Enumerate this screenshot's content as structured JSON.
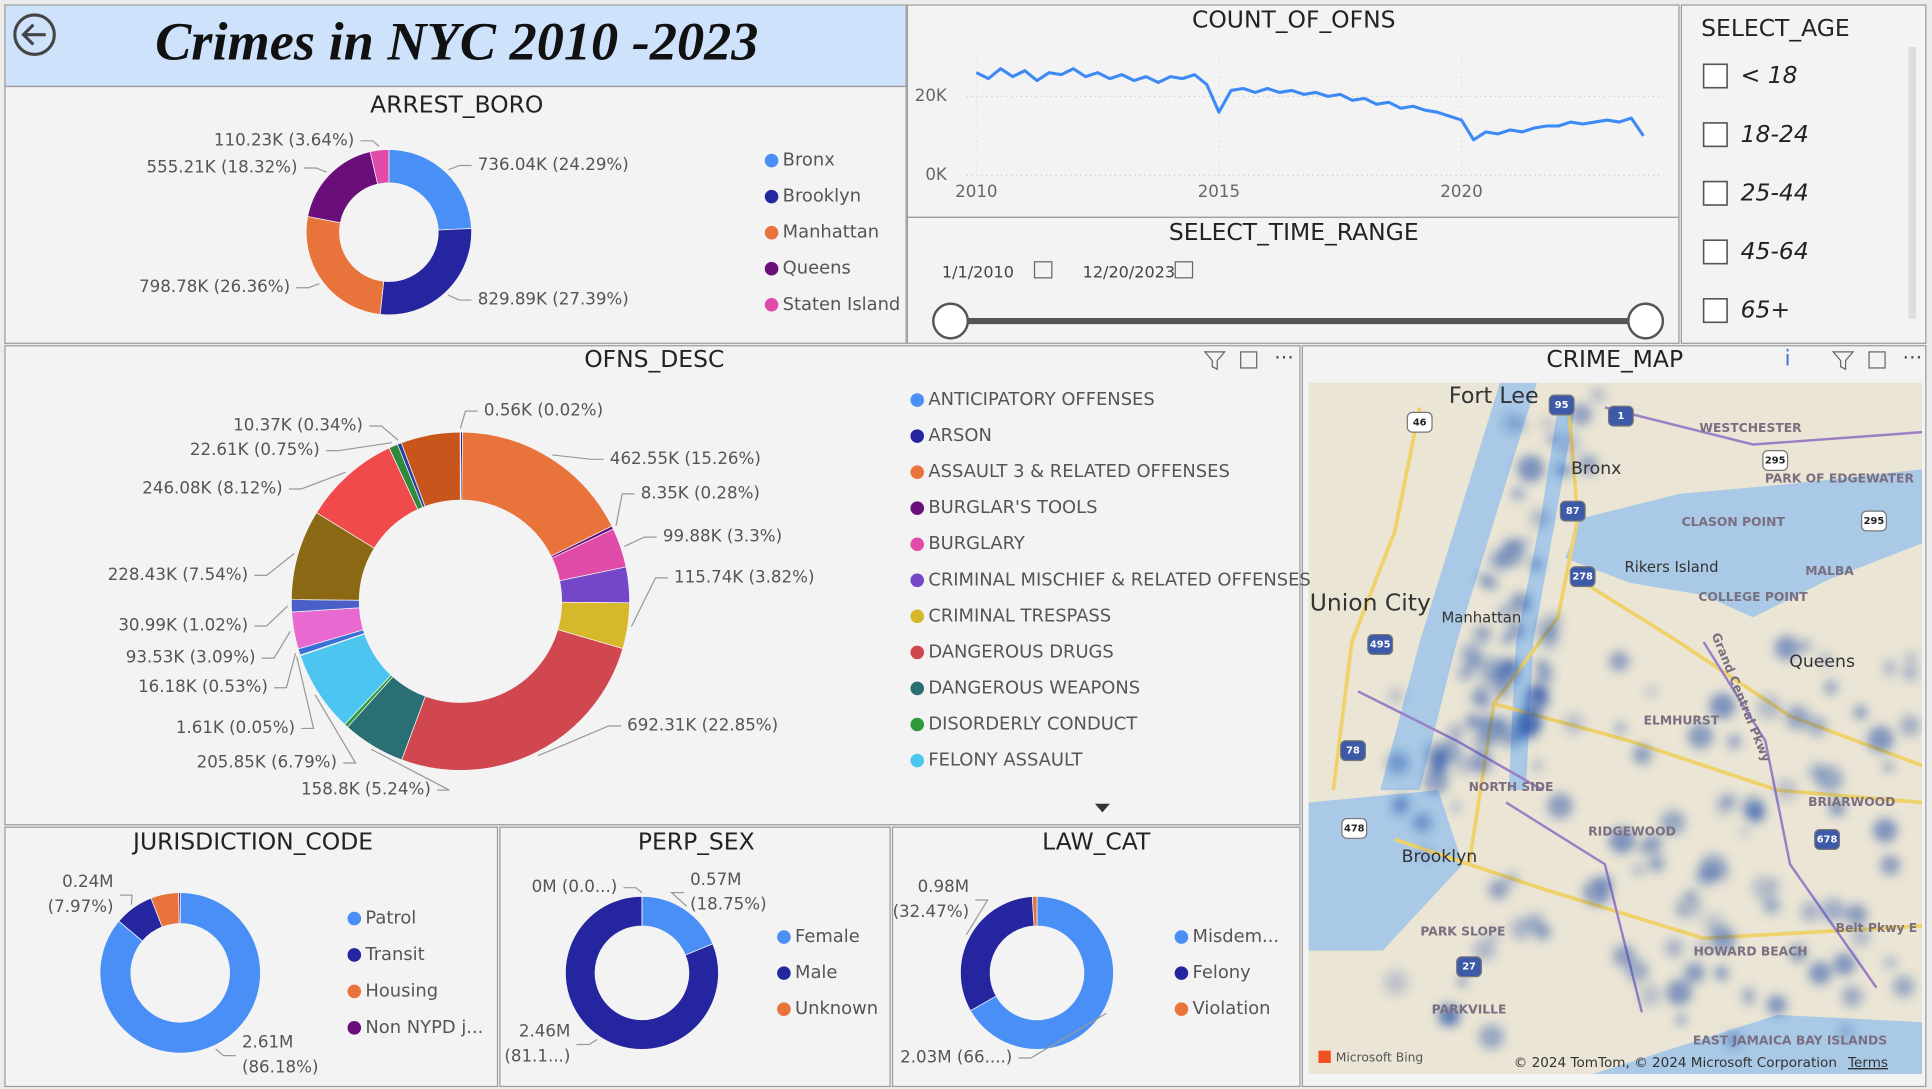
{
  "header": {
    "title": "Crimes in NYC 2010 -2023"
  },
  "chart_data": [
    {
      "type": "donut",
      "title": "ARREST_BORO",
      "categories": [
        "Bronx",
        "Brooklyn",
        "Manhattan",
        "Queens",
        "Staten Island"
      ],
      "values": [
        736040,
        829890,
        798780,
        555210,
        110230
      ],
      "value_labels": [
        "736.04K (24.29%)",
        "829.89K (27.39%)",
        "798.78K (26.36%)",
        "555.21K (18.32%)",
        "110.23K (3.64%)"
      ],
      "colors": [
        "#4a8ff5",
        "#2525a0",
        "#e8743b",
        "#6a0f7a",
        "#e04aa8"
      ]
    },
    {
      "type": "line",
      "title": "COUNT_OF_OFNS",
      "color": "#3d8af7",
      "x": [
        2010,
        2010.25,
        2010.5,
        2010.75,
        2011,
        2011.25,
        2011.5,
        2011.75,
        2012,
        2012.25,
        2012.5,
        2012.75,
        2013,
        2013.25,
        2013.5,
        2013.75,
        2014,
        2014.25,
        2014.5,
        2014.75,
        2015,
        2015.25,
        2015.5,
        2015.75,
        2016,
        2016.25,
        2016.5,
        2016.75,
        2017,
        2017.25,
        2017.5,
        2017.75,
        2018,
        2018.25,
        2018.5,
        2018.75,
        2019,
        2019.25,
        2019.5,
        2019.75,
        2020,
        2020.25,
        2020.5,
        2020.75,
        2021,
        2021.25,
        2021.5,
        2021.75,
        2022,
        2022.25,
        2022.5,
        2022.75,
        2023,
        2023.25,
        2023.5,
        2023.75
      ],
      "values": [
        26000,
        24500,
        27000,
        25000,
        26500,
        24000,
        26000,
        25500,
        27000,
        25000,
        26000,
        24500,
        25500,
        24000,
        25000,
        23500,
        25000,
        24500,
        25500,
        23000,
        16000,
        21500,
        22000,
        21000,
        22000,
        21000,
        21500,
        20500,
        21000,
        20000,
        20500,
        19000,
        19500,
        18000,
        18500,
        17000,
        17500,
        16500,
        16000,
        15000,
        14000,
        9000,
        11000,
        10500,
        11500,
        11000,
        12000,
        12500,
        12500,
        13500,
        13000,
        13500,
        14000,
        13500,
        14500,
        10000
      ],
      "xlim": [
        2009.8,
        2024.1
      ],
      "xticks": [
        2010,
        2015,
        2020
      ],
      "ylim": [
        0,
        30000
      ],
      "yticks": [
        {
          "value": 0,
          "label": "0K"
        },
        {
          "value": 20000,
          "label": "20K"
        }
      ],
      "grid": true
    },
    {
      "type": "donut",
      "title": "OFNS_DESC",
      "categories": [
        "ANTICIPATORY OFFENSES",
        "ARSON",
        "ASSAULT 3 & RELATED OFFENSES",
        "BURGLAR'S TOOLS",
        "BURGLARY",
        "CRIMINAL MISCHIEF & RELATED OFFENSES",
        "CRIMINAL TRESPASS",
        "DANGEROUS DRUGS",
        "DANGEROUS WEAPONS",
        "DISORDERLY CONDUCT",
        "FELONY ASSAULT",
        null,
        null,
        null,
        null,
        null,
        null,
        null,
        null,
        null,
        null
      ],
      "values": [
        300,
        5000,
        462550,
        8350,
        99880,
        90000,
        115740,
        692310,
        158800,
        10000,
        205850,
        1610,
        16180,
        93530,
        30990,
        228430,
        246080,
        22610,
        10370,
        150000,
        560
      ],
      "value_labels": [
        null,
        null,
        "462.55K (15.26%)",
        "8.35K (0.28%)",
        "99.88K (3.3%)",
        null,
        "115.74K (3.82%)",
        "692.31K (22.85%)",
        "158.8K (5.24%)",
        null,
        "205.85K (6.79%)",
        "1.61K (0.05%)",
        "16.18K (0.53%)",
        "93.53K (3.09%)",
        "30.99K (1.02%)",
        "228.43K (7.54%)",
        "246.08K (8.12%)",
        "22.61K (0.75%)",
        "10.37K (0.34%)",
        null,
        "0.56K (0.02%)"
      ],
      "colors": [
        "#4a8ff5",
        "#2525a0",
        "#e8743b",
        "#6a0f7a",
        "#e04aa8",
        "#7447c9",
        "#d6b82a",
        "#d0474f",
        "#2a6f73",
        "#2e9a3c",
        "#4cc5f0",
        "#7a7ae0",
        "#3a6fd8",
        "#e86ad0",
        "#4a5fc8",
        "#8b6914",
        "#f04a4a",
        "#2e8a3c",
        "#2a3fa0",
        "#c8561c",
        "#1f5f2f"
      ]
    },
    {
      "type": "donut",
      "title": "JURISDICTION_CODE",
      "categories": [
        "Patrol",
        "Transit",
        "Housing",
        "Non NYPD j..."
      ],
      "values": [
        2610000,
        240000,
        170000,
        10000
      ],
      "value_labels": [
        [
          "2.61M",
          "(86.18%)"
        ],
        [
          "0.24M",
          "(7.97%)"
        ],
        null,
        null
      ],
      "colors": [
        "#4a8ff5",
        "#2525a0",
        "#e8743b",
        "#6a0f7a"
      ]
    },
    {
      "type": "donut",
      "title": "PERP_SEX",
      "categories": [
        "Female",
        "Male",
        "Unknown"
      ],
      "values": [
        570000,
        2460000,
        0
      ],
      "value_labels": [
        [
          "0.57M",
          "(18.75%)"
        ],
        [
          "2.46M",
          "(81.1...)"
        ],
        "0M (0.0...)"
      ],
      "colors": [
        "#4a8ff5",
        "#2525a0",
        "#e8743b"
      ]
    },
    {
      "type": "donut",
      "title": "LAW_CAT",
      "categories": [
        "Misdem...",
        "Felony",
        "Violation"
      ],
      "values": [
        2030000,
        980000,
        30000
      ],
      "value_labels": [
        "2.03M (66....)",
        [
          "0.98M",
          "(32.47%)"
        ],
        null
      ],
      "colors": [
        "#4a8ff5",
        "#2525a0",
        "#e8743b"
      ]
    }
  ],
  "time_range": {
    "title": "SELECT_TIME_RANGE",
    "start": "1/1/2010",
    "end": "12/20/2023"
  },
  "age_filter": {
    "title": "SELECT_AGE",
    "options": [
      "< 18",
      "18-24",
      "25-44",
      "45-64",
      "65+"
    ]
  },
  "map": {
    "title": "CRIME_MAP",
    "places": [
      "Fort Lee",
      "Bronx",
      "Union City",
      "Manhattan",
      "Rikers Island",
      "Queens",
      "Brooklyn",
      "WESTCHESTER",
      "PARK OF EDGEWATER",
      "CLASON POINT",
      "MALBA",
      "COLLEGE POINT",
      "ELMHURST",
      "NORTH SIDE",
      "RIDGEWOOD",
      "BRIARWOOD",
      "PARK SLOPE",
      "HOWARD BEACH",
      "PARKVILLE",
      "EAST JAMAICA BAY ISLANDS",
      "Belt Pkwy E",
      "Grand Central Pkwy"
    ],
    "shields": [
      "95",
      "1",
      "46",
      "87",
      "278",
      "295",
      "495",
      "78",
      "478",
      "27",
      "678",
      "295"
    ],
    "brand": "Microsoft Bing",
    "attribution": "© 2024 TomTom, © 2024 Microsoft Corporation",
    "terms": "Terms"
  }
}
